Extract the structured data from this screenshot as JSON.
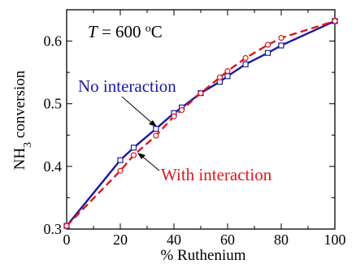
{
  "chart_data": {
    "type": "line",
    "title": "",
    "xlabel": "% Ruthenium",
    "ylabel": {
      "prefix": "NH",
      "subscript": "3",
      "suffix": " conversion"
    },
    "xlim": [
      0,
      100
    ],
    "ylim": [
      0.3,
      0.65
    ],
    "xticks": [
      0,
      20,
      40,
      60,
      80,
      100
    ],
    "yticks": [
      0.3,
      0.4,
      0.5,
      0.6
    ],
    "x_minor_step": 10,
    "y_minor_step": 0.05,
    "grid": false,
    "temperature_label": {
      "T": "T",
      "eq": " = 600 ",
      "sup": "o",
      "unit": "C"
    },
    "series": [
      {
        "name": "No interaction",
        "color": "#1a1aa0",
        "line_style": "solid",
        "marker": "square",
        "x": [
          0,
          20,
          25,
          33.3,
          40,
          42.9,
          50,
          57.1,
          60,
          66.7,
          75,
          80,
          100
        ],
        "y": [
          0.305,
          0.41,
          0.43,
          0.46,
          0.485,
          0.494,
          0.517,
          0.535,
          0.544,
          0.563,
          0.581,
          0.593,
          0.632
        ]
      },
      {
        "name": "With interaction",
        "color": "#e0141e",
        "line_style": "dashed",
        "marker": "circle",
        "x": [
          0,
          20,
          25,
          33.3,
          40,
          42.9,
          50,
          57.1,
          60,
          66.7,
          75,
          80,
          100
        ],
        "y": [
          0.305,
          0.393,
          0.418,
          0.449,
          0.48,
          0.49,
          0.517,
          0.542,
          0.552,
          0.573,
          0.594,
          0.605,
          0.632
        ]
      }
    ]
  }
}
